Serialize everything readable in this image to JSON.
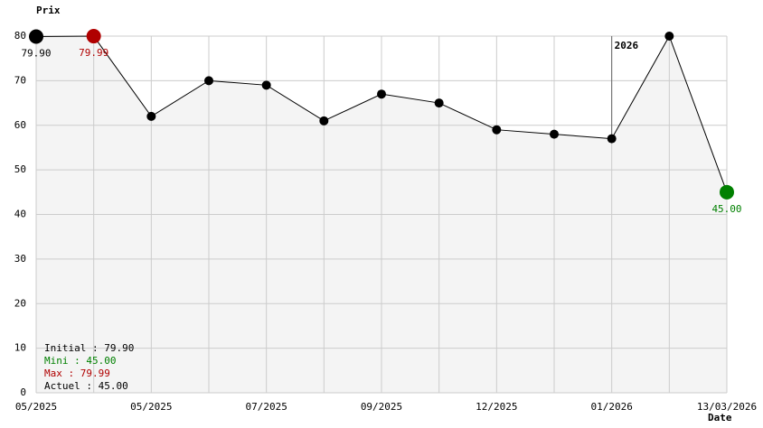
{
  "chart_data": {
    "type": "line",
    "ylabel": "Prix",
    "xlabel": "Date",
    "categories": [
      "05/2025",
      null,
      "05/2025",
      null,
      "07/2025",
      null,
      "09/2025",
      null,
      "12/2025",
      null,
      "01/2026",
      null,
      "13/03/2026"
    ],
    "values": [
      79.9,
      79.99,
      62,
      70,
      69,
      61,
      67,
      65,
      59,
      58,
      57,
      80,
      45
    ],
    "value_labels": [
      "79.90",
      "79.99",
      null,
      null,
      null,
      null,
      null,
      null,
      null,
      null,
      null,
      null,
      "45.00"
    ],
    "point_colors": [
      "#000000",
      "#b00000",
      "#000000",
      "#000000",
      "#000000",
      "#000000",
      "#000000",
      "#000000",
      "#000000",
      "#000000",
      "#000000",
      "#000000",
      "#008000"
    ],
    "color": "#000000",
    "area_color": "#f4f4f4",
    "ylim": [
      0,
      80
    ],
    "yticks": [
      0,
      10,
      20,
      30,
      40,
      50,
      60,
      70,
      80
    ],
    "grid": true,
    "annotation": "2026",
    "stats": [
      {
        "text": "Initial : 79.90",
        "color": "#000000"
      },
      {
        "text": "Mini : 45.00",
        "color": "#008000"
      },
      {
        "text": "Max : 79.99",
        "color": "#b00000"
      },
      {
        "text": "Actuel : 45.00",
        "color": "#000000"
      }
    ]
  }
}
